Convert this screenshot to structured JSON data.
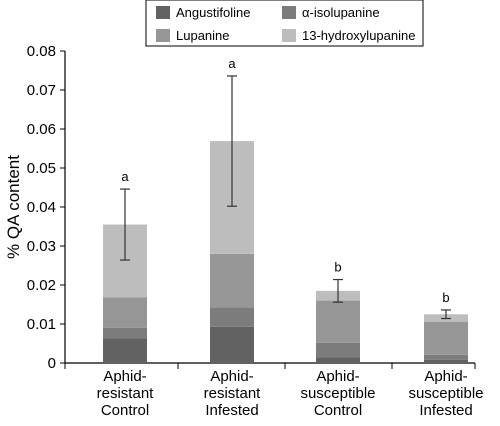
{
  "chart_data": {
    "type": "bar",
    "stacked": true,
    "title": "",
    "xlabel": "",
    "ylabel": "% QA content",
    "ylim": [
      0,
      0.08
    ],
    "yticks": [
      "0",
      "0.01",
      "0.02",
      "0.03",
      "0.04",
      "0.05",
      "0.06",
      "0.07",
      "0.08"
    ],
    "categories": [
      [
        "Aphid-",
        "resistant",
        "Control"
      ],
      [
        "Aphid-",
        "resistant",
        "Infested"
      ],
      [
        "Aphid-",
        "susceptible",
        "Control"
      ],
      [
        "Aphid-",
        "susceptible",
        "Infested"
      ]
    ],
    "series": [
      {
        "name": "Angustifoline",
        "color": "#626262",
        "values": [
          0.0063,
          0.0093,
          0.0015,
          0.0008
        ]
      },
      {
        "name": "α-isolupanine",
        "color": "#7c7c7c",
        "values": [
          0.0027,
          0.005,
          0.0037,
          0.0013
        ]
      },
      {
        "name": "Lupanine",
        "color": "#969696",
        "values": [
          0.0078,
          0.0137,
          0.0108,
          0.0085
        ]
      },
      {
        "name": "13-hydroxylupanine",
        "color": "#bdbdbd",
        "values": [
          0.0187,
          0.0289,
          0.0025,
          0.0019
        ]
      }
    ],
    "totals": [
      0.0355,
      0.0569,
      0.0185,
      0.0125
    ],
    "error": [
      0.0091,
      0.0167,
      0.0029,
      0.0011
    ],
    "significance": [
      "a",
      "a",
      "b",
      "b"
    ],
    "legend": "top-center",
    "grid": false
  }
}
